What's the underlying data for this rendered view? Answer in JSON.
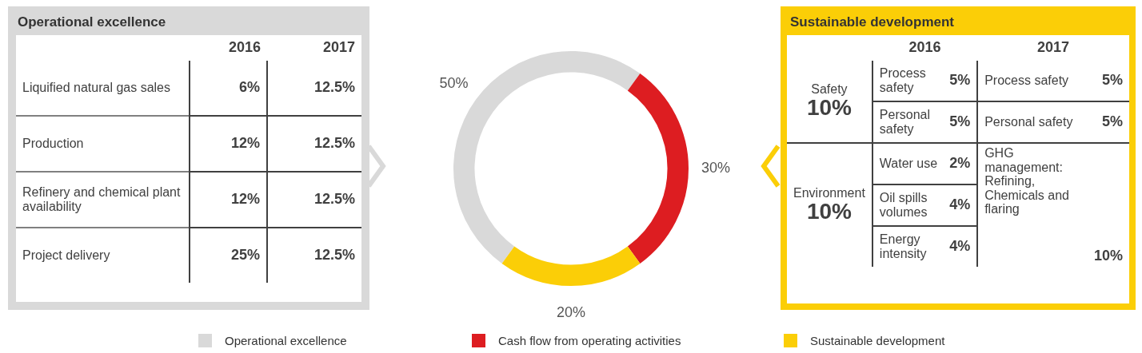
{
  "chart_data": [
    {
      "type": "other",
      "title": "Operational excellence",
      "categories": [
        "2016",
        "2017"
      ],
      "y_categories": [
        "Liquified natural gas sales",
        "Production",
        "Refinery and chemical plant availability",
        "Project delivery"
      ],
      "cell_labels": [
        [
          "6%",
          "12.5%"
        ],
        [
          "12%",
          "12.5%"
        ],
        [
          "12%",
          "12.5%"
        ],
        [
          "25%",
          "12.5%"
        ]
      ]
    },
    {
      "type": "donut",
      "categories": [
        "Operational excellence",
        "Cash flow from operating activities",
        "Sustainable development"
      ],
      "values": [
        50,
        30,
        20
      ],
      "colors": [
        "#d9d9d9",
        "#dd1d21",
        "#fbce07"
      ],
      "value_labels": [
        "50%",
        "30%",
        "20%"
      ],
      "legend": "bottom"
    },
    {
      "type": "other",
      "title": "Sustainable development",
      "categories": [
        "2016",
        "2017"
      ],
      "cell_labels": [
        [
          "Safety\n10%",
          "Process safety",
          "5%",
          "Process safety",
          "5%"
        ],
        [
          null,
          "Personal safety",
          "5%",
          "Personal safety",
          "5%"
        ],
        [
          "Environment\n10%",
          "Water use",
          "2%",
          "GHG management:\nRefining, Chemicals and flaring",
          "10%"
        ],
        [
          null,
          "Oil spills volumes",
          "4%",
          null,
          null
        ],
        [
          null,
          "Energy intensity",
          "4%",
          null,
          null
        ]
      ]
    }
  ]
}
